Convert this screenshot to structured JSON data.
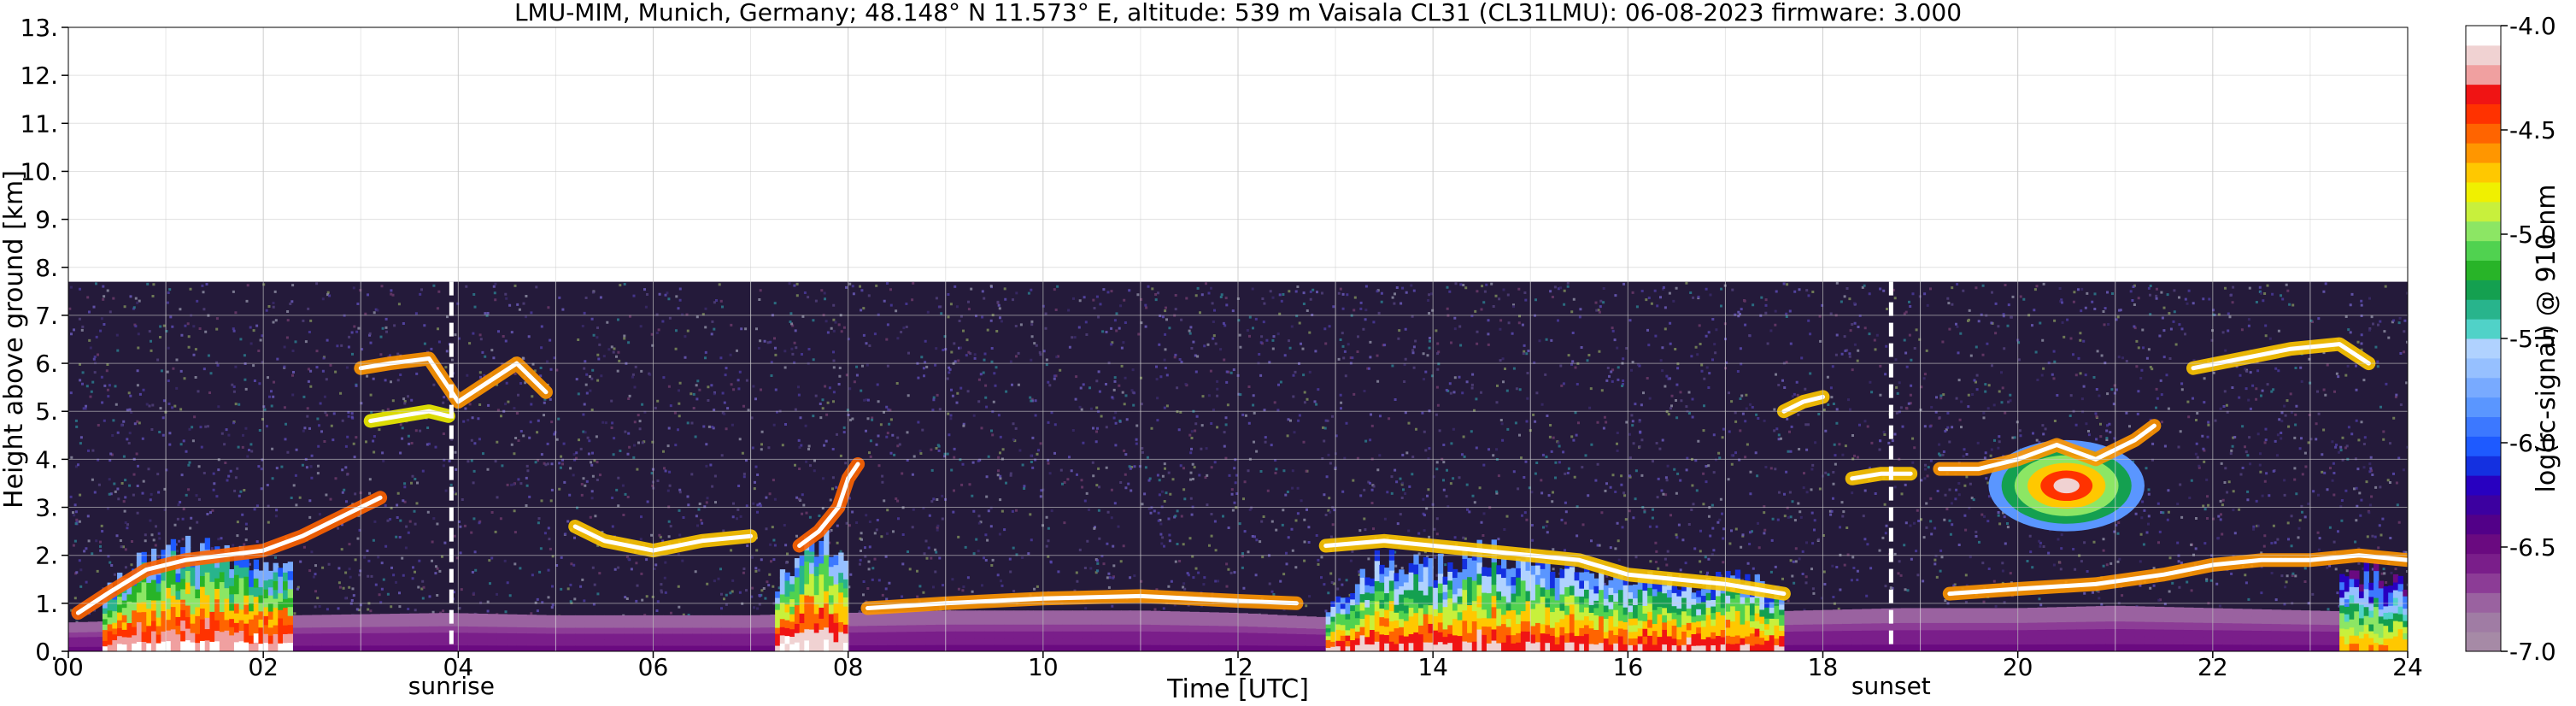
{
  "chart_data": {
    "type": "heatmap",
    "title": "LMU-MIM, Munich, Germany; 48.148° N 11.573° E, altitude: 539 m    Vaisala CL31 (CL31LMU): 06-08-2023    firmware: 3.000",
    "xlabel": "Time [UTC]",
    "ylabel": "Height above ground [km]",
    "xlim": [
      0,
      24
    ],
    "ylim": [
      0,
      13
    ],
    "x_ticks": [
      {
        "value": 0,
        "label": "00"
      },
      {
        "value": 2,
        "label": "02"
      },
      {
        "value": 4,
        "label": "04"
      },
      {
        "value": 6,
        "label": "06"
      },
      {
        "value": 8,
        "label": "08"
      },
      {
        "value": 10,
        "label": "10"
      },
      {
        "value": 12,
        "label": "12"
      },
      {
        "value": 14,
        "label": "14"
      },
      {
        "value": 16,
        "label": "16"
      },
      {
        "value": 18,
        "label": "18"
      },
      {
        "value": 20,
        "label": "20"
      },
      {
        "value": 22,
        "label": "22"
      },
      {
        "value": 24,
        "label": "24"
      }
    ],
    "y_ticks": [
      {
        "value": 0,
        "label": "0."
      },
      {
        "value": 1,
        "label": "1."
      },
      {
        "value": 2,
        "label": "2."
      },
      {
        "value": 3,
        "label": "3."
      },
      {
        "value": 4,
        "label": "4."
      },
      {
        "value": 5,
        "label": "5."
      },
      {
        "value": 6,
        "label": "6."
      },
      {
        "value": 7,
        "label": "7."
      },
      {
        "value": 8,
        "label": "8."
      },
      {
        "value": 9,
        "label": "9."
      },
      {
        "value": 10,
        "label": "10."
      },
      {
        "value": 11,
        "label": "11."
      },
      {
        "value": 12,
        "label": "12."
      },
      {
        "value": 13,
        "label": "13."
      }
    ],
    "grid": true,
    "measurement_top_km": 7.7,
    "sunrise": {
      "time": 3.93,
      "label": "sunrise"
    },
    "sunset": {
      "time": 18.7,
      "label": "sunset"
    },
    "colorbar": {
      "label": "log(rc-signal) @ 910 nm",
      "range": [
        -7.0,
        -4.0
      ],
      "ticks": [
        {
          "value": -4.0,
          "label": "-4.0"
        },
        {
          "value": -4.5,
          "label": "-4.5"
        },
        {
          "value": -5.0,
          "label": "-5.0"
        },
        {
          "value": -5.5,
          "label": "-5.5"
        },
        {
          "value": -6.0,
          "label": "-6.0"
        },
        {
          "value": -6.5,
          "label": "-6.5"
        },
        {
          "value": -7.0,
          "label": "-7.0"
        }
      ],
      "colors_bottom_to_top": [
        "#a68aa6",
        "#a07ca4",
        "#9a62a0",
        "#8c3c96",
        "#7a1e8a",
        "#6a0a80",
        "#520088",
        "#3c00a0",
        "#2800c0",
        "#1430e0",
        "#1e5aff",
        "#3c78ff",
        "#5a96ff",
        "#78aaff",
        "#96c0ff",
        "#b0d2ff",
        "#50d2c8",
        "#28b48c",
        "#14a050",
        "#28b428",
        "#50d250",
        "#8ce664",
        "#c8f03c",
        "#f0f000",
        "#ffc800",
        "#ff9600",
        "#ff6400",
        "#ff3200",
        "#f01414",
        "#f0a0a0",
        "#f0d2d2",
        "#ffffff"
      ]
    },
    "features": [
      {
        "kind": "aerosol_layer",
        "x": [
          0.0,
          1.6,
          2.3,
          3.9,
          5.0,
          6.0,
          7.0,
          7.9,
          8.0,
          9.0,
          10.0,
          11.0,
          12.0,
          13.0,
          14.0,
          15.0,
          16.0,
          17.0,
          17.8,
          18.8,
          19.0,
          20.0,
          21.0,
          22.0,
          23.0,
          24.0
        ],
        "y": [
          0.6,
          0.7,
          0.75,
          0.8,
          0.75,
          0.75,
          0.75,
          0.8,
          0.8,
          0.85,
          0.85,
          0.85,
          0.8,
          0.7,
          0.75,
          0.8,
          0.8,
          0.8,
          0.85,
          0.9,
          0.9,
          0.9,
          0.95,
          0.9,
          0.85,
          0.8
        ],
        "intensity": -6.6
      },
      {
        "kind": "cloud_base",
        "x": [
          0.1,
          0.4,
          0.8,
          1.2,
          1.6,
          2.0,
          2.4,
          2.8,
          3.2
        ],
        "y": [
          0.8,
          1.2,
          1.7,
          1.9,
          2.0,
          2.1,
          2.4,
          2.8,
          3.2
        ],
        "intensity": -4.2
      },
      {
        "kind": "cloud_base",
        "x": [
          5.2,
          5.5,
          6.0,
          6.5,
          7.0
        ],
        "y": [
          2.6,
          2.3,
          2.1,
          2.3,
          2.4
        ],
        "intensity": -4.4
      },
      {
        "kind": "cloud_base",
        "x": [
          7.5,
          7.7,
          7.9,
          8.0,
          8.1
        ],
        "y": [
          2.2,
          2.5,
          3.0,
          3.6,
          3.9
        ],
        "intensity": -4.2
      },
      {
        "kind": "cloud_base",
        "x": [
          8.2,
          9.0,
          10.0,
          11.0,
          12.0,
          12.6
        ],
        "y": [
          0.9,
          1.0,
          1.1,
          1.15,
          1.05,
          1.0
        ],
        "intensity": -4.3
      },
      {
        "kind": "cloud_base",
        "x": [
          12.9,
          13.5,
          14.5,
          15.5,
          16.0,
          17.0,
          17.6
        ],
        "y": [
          2.2,
          2.3,
          2.1,
          1.9,
          1.6,
          1.4,
          1.2
        ],
        "intensity": -4.4
      },
      {
        "kind": "cloud_base",
        "x": [
          3.0,
          3.3,
          3.7,
          4.0,
          4.3,
          4.6,
          4.9
        ],
        "y": [
          5.9,
          6.0,
          6.1,
          5.2,
          5.6,
          6.0,
          5.4
        ],
        "intensity": -4.3
      },
      {
        "kind": "cloud_base",
        "x": [
          3.1,
          3.4,
          3.7,
          3.9
        ],
        "y": [
          4.8,
          4.9,
          5.0,
          4.9
        ],
        "intensity": -4.5
      },
      {
        "kind": "cloud_base",
        "x": [
          17.6,
          17.8,
          18.0
        ],
        "y": [
          5.0,
          5.2,
          5.3
        ],
        "intensity": -4.4
      },
      {
        "kind": "cloud_base",
        "x": [
          18.3,
          18.6,
          18.9
        ],
        "y": [
          3.6,
          3.7,
          3.7
        ],
        "intensity": -4.4
      },
      {
        "kind": "cloud_base",
        "x": [
          19.2,
          19.6,
          20.0,
          20.4,
          20.8,
          21.2,
          21.4
        ],
        "y": [
          3.8,
          3.8,
          4.0,
          4.3,
          4.0,
          4.4,
          4.7
        ],
        "intensity": -4.3
      },
      {
        "kind": "cloud_base",
        "x": [
          19.3,
          20.0,
          20.8,
          21.5,
          22.0,
          22.5,
          23.0,
          23.5,
          24.0
        ],
        "y": [
          1.2,
          1.3,
          1.4,
          1.6,
          1.8,
          1.9,
          1.9,
          2.0,
          1.9
        ],
        "intensity": -4.3
      },
      {
        "kind": "cloud_base",
        "x": [
          21.8,
          22.3,
          22.8,
          23.3,
          23.6
        ],
        "y": [
          5.9,
          6.1,
          6.3,
          6.4,
          6.0
        ],
        "intensity": -4.4
      },
      {
        "kind": "precip_column",
        "x0": 0.35,
        "x1": 2.3,
        "top": [
          1.2,
          1.9,
          2.2,
          2.3,
          2.1,
          1.9,
          1.8
        ],
        "intensity": -4.6
      },
      {
        "kind": "precip_column",
        "x0": 7.25,
        "x1": 7.95,
        "top": [
          1.5,
          2.2,
          2.4,
          2.1
        ],
        "intensity": -4.5
      },
      {
        "kind": "precip_column",
        "x0": 12.9,
        "x1": 17.6,
        "top": [
          0.9,
          2.0,
          1.8,
          2.2,
          2.0,
          1.8,
          1.6,
          1.5,
          1.6,
          1.3
        ],
        "intensity": -4.9
      },
      {
        "kind": "precip_column",
        "x0": 23.3,
        "x1": 24.0,
        "top": [
          1.6,
          1.8,
          1.4
        ],
        "intensity": -5.8
      },
      {
        "kind": "cloud_patch",
        "x0": 19.7,
        "x1": 21.3,
        "y0": 2.5,
        "y1": 4.4,
        "intensity": -4.7
      }
    ]
  }
}
